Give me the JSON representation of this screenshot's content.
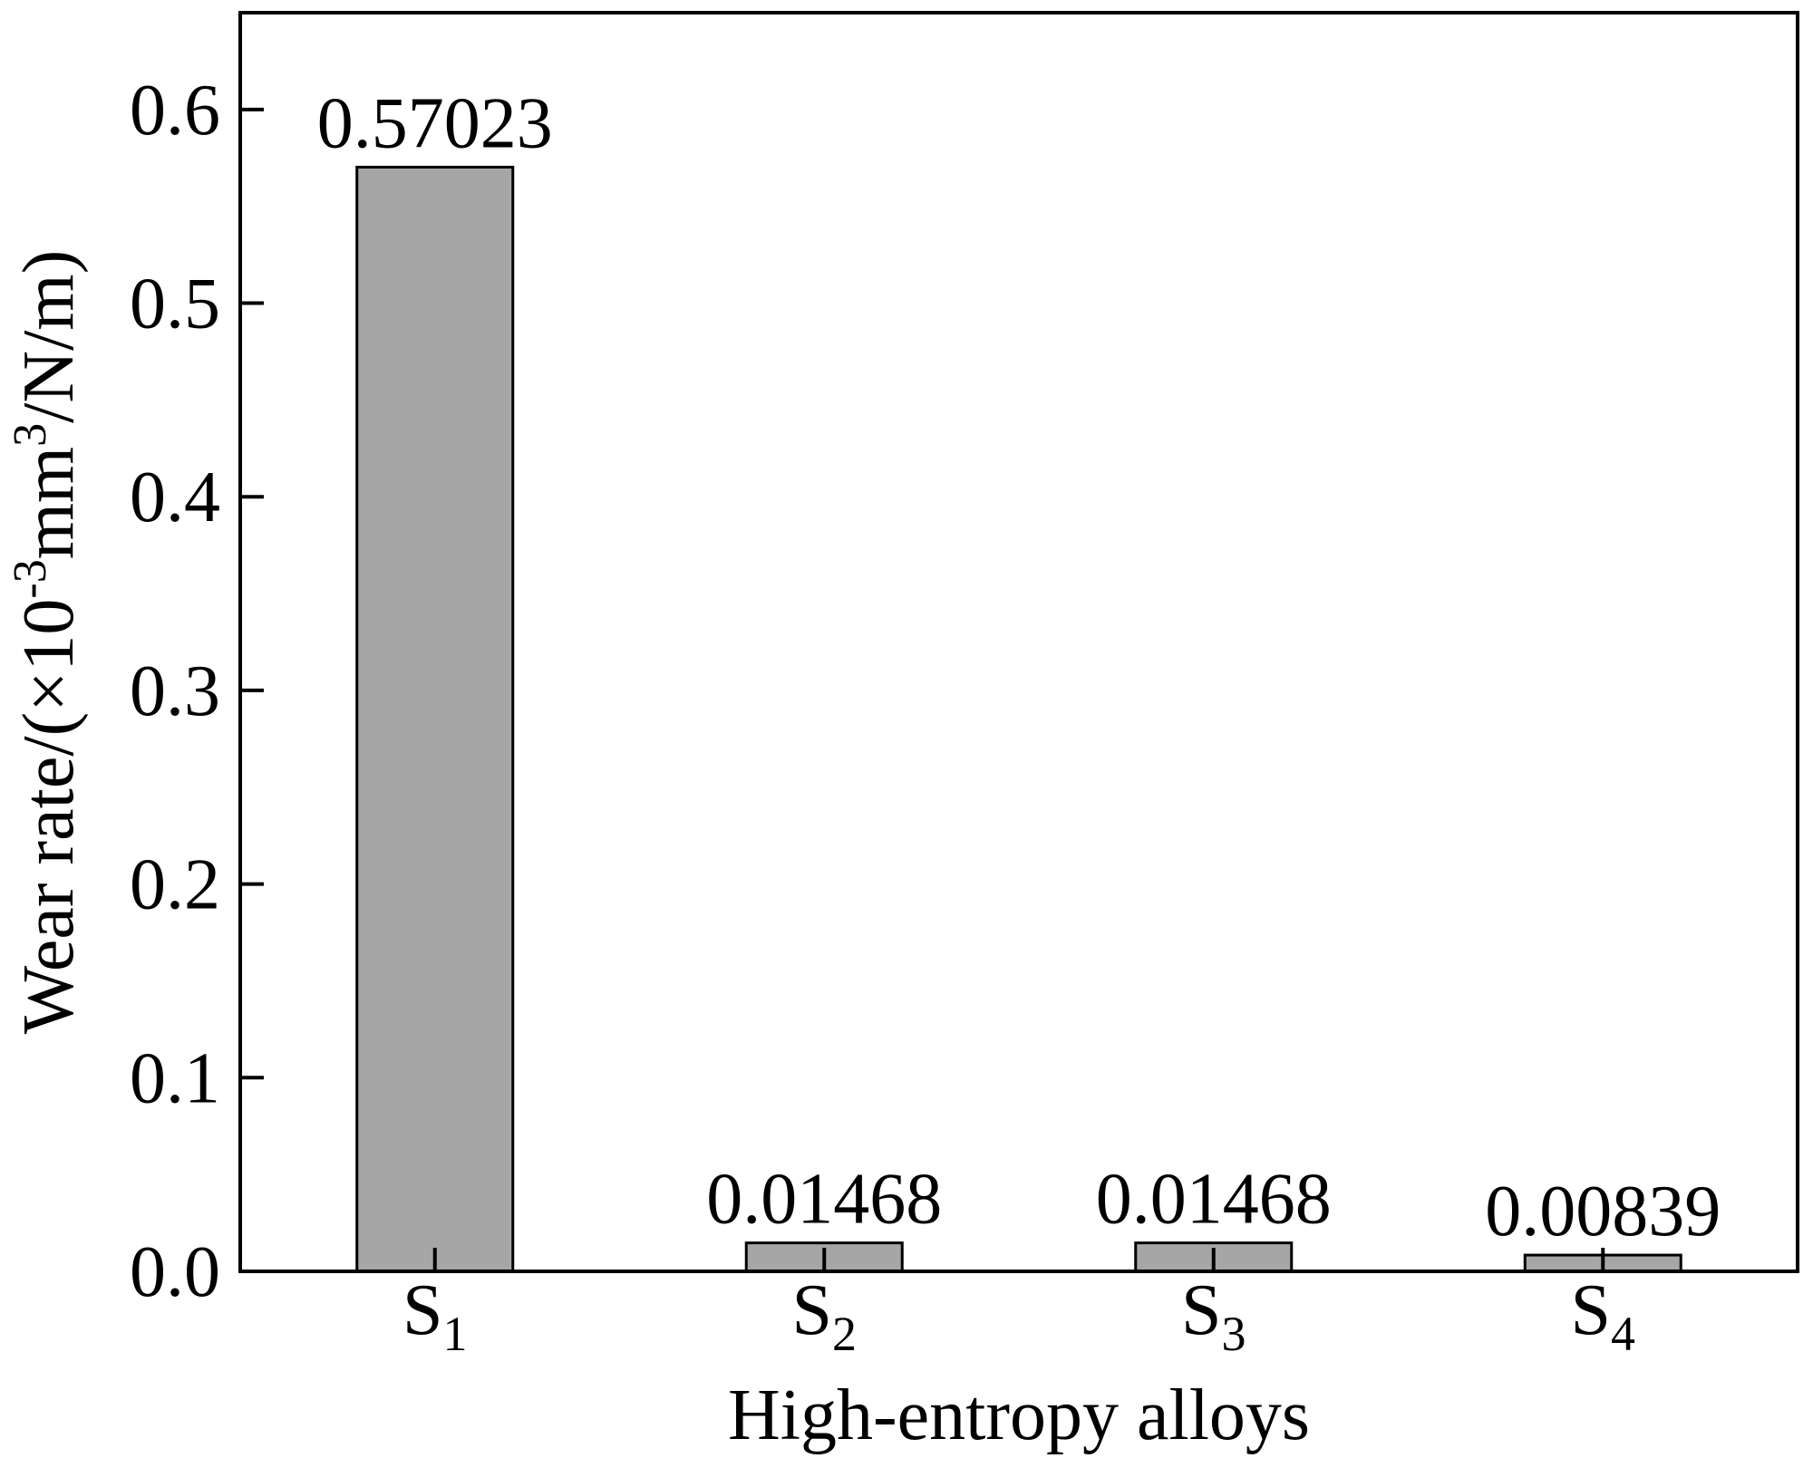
{
  "chart_data": {
    "type": "bar",
    "categories": [
      {
        "base": "S",
        "sub": "1"
      },
      {
        "base": "S",
        "sub": "2"
      },
      {
        "base": "S",
        "sub": "3"
      },
      {
        "base": "S",
        "sub": "4"
      }
    ],
    "values": [
      0.57023,
      0.01468,
      0.01468,
      0.00839
    ],
    "data_labels": [
      "0.57023",
      "0.01468",
      "0.01468",
      "0.00839"
    ],
    "title": "",
    "xlabel": "High-entropy alloys",
    "ylabel": {
      "part1": "Wear rate/(×10",
      "sup1": "-3",
      "part2": "mm",
      "sup2": "3",
      "part3": "/N/m)"
    },
    "ylim": [
      0,
      0.65
    ],
    "yticks": [
      0.0,
      0.1,
      0.2,
      0.3,
      0.4,
      0.5,
      0.6
    ],
    "ytick_labels": [
      "0.0",
      "0.1",
      "0.2",
      "0.3",
      "0.4",
      "0.5",
      "0.6"
    ],
    "grid": false,
    "legend": "none",
    "bar_color": "#a6a6a6",
    "edge_color": "#000000"
  }
}
